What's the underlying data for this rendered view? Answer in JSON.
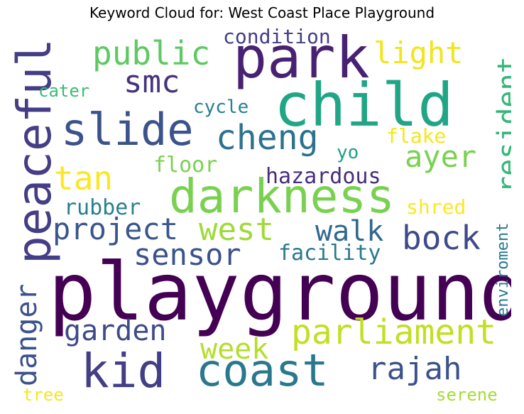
{
  "title": "Keyword Cloud for: West Coast Place Playground",
  "words": [
    {
      "text": "playground",
      "color": "#440154"
    },
    {
      "text": "child",
      "color": "#21a685"
    },
    {
      "text": "park",
      "color": "#482173"
    },
    {
      "text": "darkness",
      "color": "#7ad151"
    },
    {
      "text": "coast",
      "color": "#2a788e"
    },
    {
      "text": "kid",
      "color": "#433e85"
    },
    {
      "text": "peaceful",
      "color": "#433e85"
    },
    {
      "text": "slide",
      "color": "#3b528b"
    },
    {
      "text": "parliament",
      "color": "#c2df23"
    },
    {
      "text": "public",
      "color": "#5ec962"
    },
    {
      "text": "cheng",
      "color": "#2c728e"
    },
    {
      "text": "project",
      "color": "#39568c"
    },
    {
      "text": "bock",
      "color": "#3e4a89"
    },
    {
      "text": "tan",
      "color": "#fde725"
    },
    {
      "text": "west",
      "color": "#a0da39"
    },
    {
      "text": "walk",
      "color": "#31688e"
    },
    {
      "text": "light",
      "color": "#f1e51d"
    },
    {
      "text": "rajah",
      "color": "#3b528b"
    },
    {
      "text": "garden",
      "color": "#3e4a89"
    },
    {
      "text": "sensor",
      "color": "#3b528b"
    },
    {
      "text": "week",
      "color": "#b5de2b"
    },
    {
      "text": "ayer",
      "color": "#7ad151"
    },
    {
      "text": "smc",
      "color": "#46337e"
    },
    {
      "text": "resident",
      "color": "#35b779"
    },
    {
      "text": "danger",
      "color": "#3b528b"
    },
    {
      "text": "hazardous",
      "color": "#472d7b"
    },
    {
      "text": "facility",
      "color": "#2a788e"
    },
    {
      "text": "floor",
      "color": "#7ad151"
    },
    {
      "text": "rubber",
      "color": "#27808e"
    },
    {
      "text": "shred",
      "color": "#fde725"
    },
    {
      "text": "flake",
      "color": "#f4e61e"
    },
    {
      "text": "condition",
      "color": "#433e85"
    },
    {
      "text": "cycle",
      "color": "#26828e"
    },
    {
      "text": "cater",
      "color": "#3dbc74"
    },
    {
      "text": "yo",
      "color": "#1fa088"
    },
    {
      "text": "enviroment",
      "color": "#2a788e"
    },
    {
      "text": "tree",
      "color": "#f6e620"
    },
    {
      "text": "serene",
      "color": "#a8db34"
    }
  ]
}
